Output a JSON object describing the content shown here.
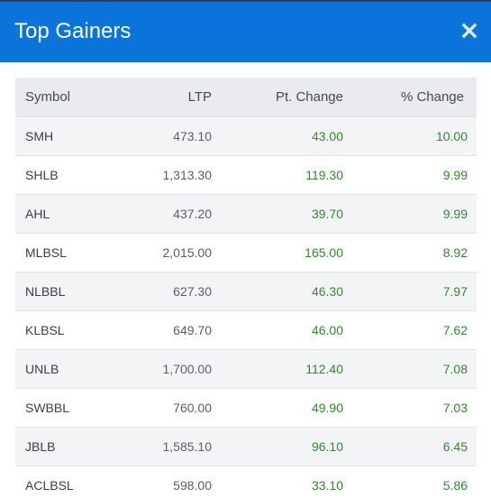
{
  "header": {
    "title": "Top Gainers",
    "close_label": "×"
  },
  "table": {
    "columns": [
      "Symbol",
      "LTP",
      "Pt. Change",
      "% Change"
    ],
    "rows": [
      {
        "symbol": "SMH",
        "ltp": "473.10",
        "pt_change": "43.00",
        "pct_change": "10.00"
      },
      {
        "symbol": "SHLB",
        "ltp": "1,313.30",
        "pt_change": "119.30",
        "pct_change": "9.99"
      },
      {
        "symbol": "AHL",
        "ltp": "437.20",
        "pt_change": "39.70",
        "pct_change": "9.99"
      },
      {
        "symbol": "MLBSL",
        "ltp": "2,015.00",
        "pt_change": "165.00",
        "pct_change": "8.92"
      },
      {
        "symbol": "NLBBL",
        "ltp": "627.30",
        "pt_change": "46.30",
        "pct_change": "7.97"
      },
      {
        "symbol": "KLBSL",
        "ltp": "649.70",
        "pt_change": "46.00",
        "pct_change": "7.62"
      },
      {
        "symbol": "UNLB",
        "ltp": "1,700.00",
        "pt_change": "112.40",
        "pct_change": "7.08"
      },
      {
        "symbol": "SWBBL",
        "ltp": "760.00",
        "pt_change": "49.90",
        "pct_change": "7.03"
      },
      {
        "symbol": "JBLB",
        "ltp": "1,585.10",
        "pt_change": "96.10",
        "pct_change": "6.45"
      },
      {
        "symbol": "ACLBSL",
        "ltp": "598.00",
        "pt_change": "33.10",
        "pct_change": "5.86"
      }
    ]
  },
  "colors": {
    "header_bg": "#0a74da",
    "positive": "#2e8b2e",
    "header_row_bg": "#e9ebee",
    "stripe_bg": "#f3f4f6"
  },
  "icons": {
    "close": "close-icon"
  }
}
